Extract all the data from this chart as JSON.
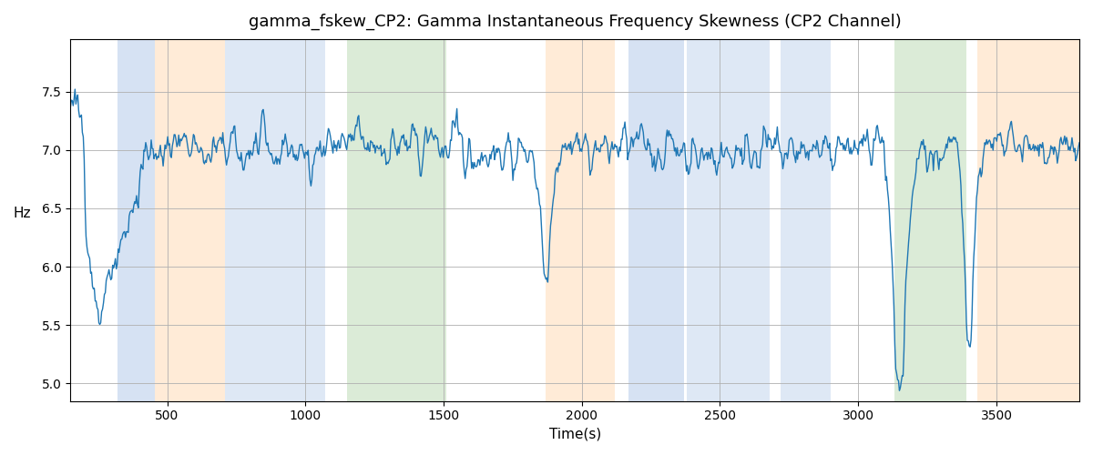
{
  "title": "gamma_fskew_CP2: Gamma Instantaneous Frequency Skewness (CP2 Channel)",
  "xlabel": "Time(s)",
  "ylabel": "Hz",
  "xlim": [
    150,
    3800
  ],
  "ylim": [
    4.85,
    7.95
  ],
  "yticks": [
    5.0,
    5.5,
    6.0,
    6.5,
    7.0,
    7.5
  ],
  "xticks": [
    500,
    1000,
    1500,
    2000,
    2500,
    3000,
    3500
  ],
  "line_color": "#1f77b4",
  "line_width": 1.0,
  "bg_color": "white",
  "grid_color": "#b0b0b0",
  "shaded_bands": [
    {
      "xmin": 320,
      "xmax": 455,
      "color": "#aec6e8",
      "alpha": 0.5
    },
    {
      "xmin": 455,
      "xmax": 710,
      "color": "#ffd9b0",
      "alpha": 0.5
    },
    {
      "xmin": 710,
      "xmax": 870,
      "color": "#aec6e8",
      "alpha": 0.4
    },
    {
      "xmin": 870,
      "xmax": 1070,
      "color": "#aec6e8",
      "alpha": 0.4
    },
    {
      "xmin": 1150,
      "xmax": 1510,
      "color": "#b8d9b0",
      "alpha": 0.5
    },
    {
      "xmin": 1870,
      "xmax": 2120,
      "color": "#ffd9b0",
      "alpha": 0.5
    },
    {
      "xmin": 2170,
      "xmax": 2370,
      "color": "#aec6e8",
      "alpha": 0.5
    },
    {
      "xmin": 2380,
      "xmax": 2680,
      "color": "#aec6e8",
      "alpha": 0.4
    },
    {
      "xmin": 2720,
      "xmax": 2900,
      "color": "#aec6e8",
      "alpha": 0.4
    },
    {
      "xmin": 3130,
      "xmax": 3390,
      "color": "#b8d9b0",
      "alpha": 0.5
    },
    {
      "xmin": 3430,
      "xmax": 3800,
      "color": "#ffd9b0",
      "alpha": 0.5
    }
  ],
  "random_seed": 42
}
